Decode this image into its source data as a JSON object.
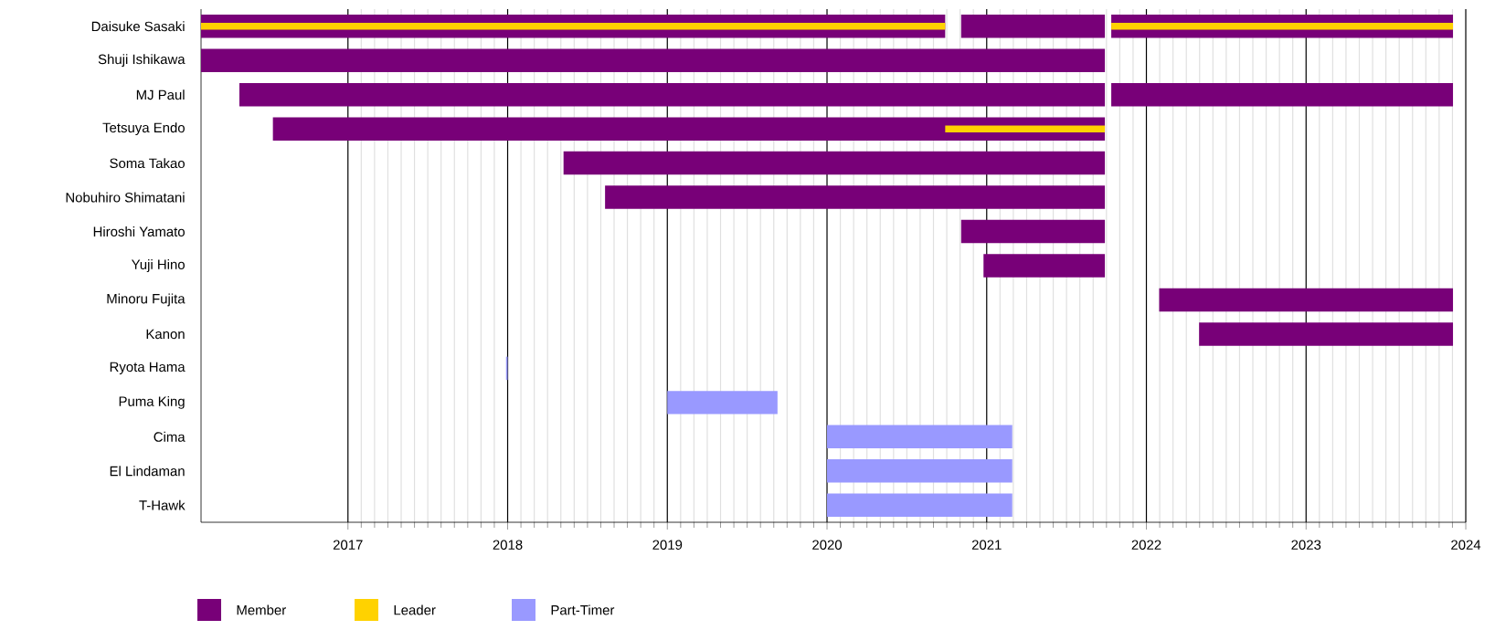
{
  "chart_data": {
    "type": "bar",
    "orientation": "horizontal",
    "categories": [
      "Daisuke Sasaki",
      "Shuji Ishikawa",
      "MJ Paul",
      "Tetsuya Endo",
      "Soma Takao",
      "Nobuhiro Shimatani",
      "Hiroshi Yamato",
      "Yuji Hino",
      "Minoru Fujita",
      "Kanon",
      "Ryota Hama",
      "Puma King",
      "Cima",
      "El Lindaman",
      "T-Hawk"
    ],
    "series": [
      {
        "name": "Member",
        "color": "#780078",
        "base": [
          2016.08,
          2016.08,
          2016.32,
          2016.53,
          2018.35,
          2018.61,
          2020.84,
          2020.98,
          2022.08,
          2022.33,
          null,
          null,
          null,
          null,
          null
        ],
        "values": [
          4.66,
          5.66,
          5.42,
          5.21,
          3.39,
          3.13,
          0.9,
          0.76,
          1.84,
          1.59,
          null,
          null,
          null,
          null,
          null
        ]
      },
      {
        "color": "#780078",
        "base": [
          2020.84,
          null,
          null,
          null,
          null,
          null,
          null,
          null,
          null,
          null,
          null,
          null,
          null,
          null,
          null
        ],
        "values": [
          0.9,
          null,
          null,
          null,
          null,
          null,
          null,
          null,
          null,
          null,
          null,
          null,
          null,
          null,
          null
        ]
      },
      {
        "color": "#780078",
        "base": [
          2021.78,
          null,
          2021.78,
          null,
          null,
          null,
          null,
          null,
          null,
          null,
          null,
          null,
          null,
          null,
          null
        ],
        "values": [
          2.14,
          null,
          2.14,
          null,
          null,
          null,
          null,
          null,
          null,
          null,
          null,
          null,
          null,
          null,
          null
        ]
      },
      {
        "name": "Leader",
        "color": "#ffd200",
        "base": [
          2016.08,
          null,
          null,
          2020.74,
          null,
          null,
          null,
          null,
          null,
          null,
          null,
          null,
          null,
          null,
          null
        ],
        "values": [
          4.66,
          null,
          null,
          1.0,
          null,
          null,
          null,
          null,
          null,
          null,
          null,
          null,
          null,
          null,
          null
        ]
      },
      {
        "color": "#ffd200",
        "base": [
          2021.78,
          null,
          null,
          null,
          null,
          null,
          null,
          null,
          null,
          null,
          null,
          null,
          null,
          null,
          null
        ],
        "values": [
          2.14,
          null,
          null,
          null,
          null,
          null,
          null,
          null,
          null,
          null,
          null,
          null,
          null,
          null,
          null
        ]
      },
      {
        "name": "Part-Timer",
        "color": "#9999ff",
        "base": [
          null,
          null,
          null,
          null,
          null,
          null,
          null,
          null,
          null,
          null,
          2017.99,
          2019.0,
          2020.0,
          2020.0,
          2020.0
        ],
        "values": [
          null,
          null,
          null,
          null,
          null,
          null,
          null,
          null,
          null,
          null,
          0.01,
          0.69,
          1.16,
          1.16,
          1.16
        ]
      }
    ],
    "xlim": [
      2016.08,
      2024
    ],
    "xticks": [
      2017,
      2018,
      2019,
      2020,
      2021,
      2022,
      2023,
      2024
    ],
    "grid": true,
    "legend": "bottom"
  }
}
